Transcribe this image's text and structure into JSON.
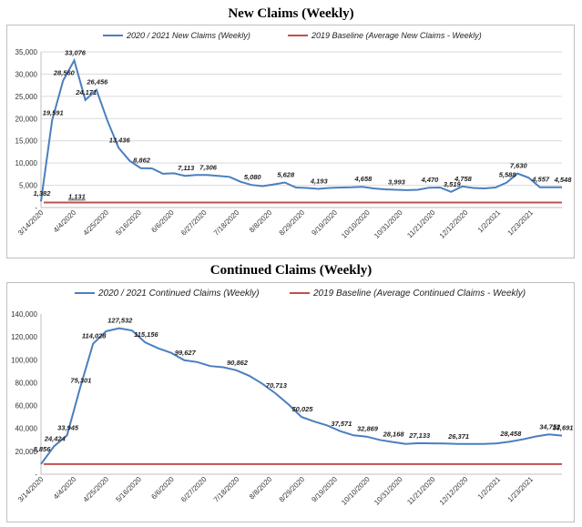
{
  "colors": {
    "series": "#4a7fbf",
    "baseline": "#c0504d"
  },
  "chart_data": [
    {
      "type": "line",
      "title": "New Claims (Weekly)",
      "legend_position": "top",
      "grid": true,
      "ylim": [
        0,
        35000
      ],
      "y_ticks": [
        0,
        5000,
        10000,
        15000,
        20000,
        25000,
        30000,
        35000
      ],
      "y_tick_labels": [
        "-",
        "5,000",
        "10,000",
        "15,000",
        "20,000",
        "25,000",
        "30,000",
        "35,000"
      ],
      "x_tick_labels": [
        "3/14/2020",
        "4/4/2020",
        "4/25/2020",
        "5/16/2020",
        "6/6/2020",
        "6/27/2020",
        "7/18/2020",
        "8/8/2020",
        "8/29/2020",
        "9/19/2020",
        "10/10/2020",
        "10/31/2020",
        "11/21/2020",
        "12/12/2020",
        "1/2/2021",
        "1/23/2021"
      ],
      "series": [
        {
          "name": "2020 / 2021 New Claims (Weekly)",
          "values": [
            1382,
            19591,
            28560,
            33076,
            24171,
            26456,
            19500,
            13436,
            10500,
            8862,
            8800,
            7600,
            7700,
            7113,
            7300,
            7306,
            7100,
            6900,
            5800,
            5080,
            4800,
            5200,
            5628,
            4500,
            4400,
            4193,
            4400,
            4500,
            4550,
            4658,
            4300,
            4100,
            3993,
            3900,
            4000,
            4470,
            4500,
            3519,
            4758,
            4400,
            4300,
            4500,
            5588,
            7630,
            6700,
            4557,
            4550,
            4548
          ],
          "labels": [
            {
              "i": 0,
              "text": "1,382"
            },
            {
              "i": 1,
              "text": "19,591"
            },
            {
              "i": 2,
              "text": "28,560"
            },
            {
              "i": 3,
              "text": "33,076"
            },
            {
              "i": 4,
              "text": "24,171"
            },
            {
              "i": 5,
              "text": "26,456"
            },
            {
              "i": 7,
              "text": "13,436"
            },
            {
              "i": 9,
              "text": "8,862"
            },
            {
              "i": 13,
              "text": "7,113"
            },
            {
              "i": 15,
              "text": "7,306"
            },
            {
              "i": 19,
              "text": "5,080"
            },
            {
              "i": 22,
              "text": "5,628"
            },
            {
              "i": 25,
              "text": "4,193"
            },
            {
              "i": 29,
              "text": "4,658"
            },
            {
              "i": 32,
              "text": "3,993"
            },
            {
              "i": 35,
              "text": "4,470"
            },
            {
              "i": 37,
              "text": "3,519"
            },
            {
              "i": 38,
              "text": "4,758"
            },
            {
              "i": 42,
              "text": "5,588"
            },
            {
              "i": 43,
              "text": "7,630"
            },
            {
              "i": 45,
              "text": "4,557"
            },
            {
              "i": 47,
              "text": "4,548"
            }
          ]
        },
        {
          "name": "2019 Baseline (Average New Claims - Weekly)",
          "constant": 1131,
          "label": "1,131"
        }
      ]
    },
    {
      "type": "line",
      "title": "Continued Claims (Weekly)",
      "legend_position": "top",
      "grid": false,
      "ylim": [
        0,
        140000
      ],
      "y_ticks": [
        0,
        20000,
        40000,
        60000,
        80000,
        100000,
        120000,
        140000
      ],
      "y_tick_labels": [
        "-",
        "20,000",
        "40,000",
        "60,000",
        "80,000",
        "100,000",
        "120,000",
        "140,000"
      ],
      "x_tick_labels": [
        "3/14/2020",
        "4/4/2020",
        "4/25/2020",
        "5/16/2020",
        "6/6/2020",
        "6/27/2020",
        "7/18/2020",
        "8/8/2020",
        "8/29/2020",
        "9/19/2020",
        "10/10/2020",
        "10/31/2020",
        "11/21/2020",
        "12/12/2020",
        "1/2/2021",
        "1/23/2021"
      ],
      "series": [
        {
          "name": "2020 / 2021 Continued Claims (Weekly)",
          "values": [
            8856,
            24424,
            33945,
            75301,
            114028,
            125000,
            127532,
            125500,
            115156,
            110000,
            106000,
            99627,
            98000,
            94500,
            93500,
            90862,
            86000,
            79000,
            70713,
            61000,
            50025,
            46000,
            42500,
            37571,
            34000,
            32869,
            30000,
            28168,
            26500,
            27133,
            27000,
            26800,
            26371,
            26371,
            26371,
            27000,
            28458,
            30500,
            33000,
            34752,
            33691
          ],
          "labels": [
            {
              "i": 0,
              "text": "8,856",
              "dy": -14
            },
            {
              "i": 1,
              "text": "24,424"
            },
            {
              "i": 2,
              "text": "33,945"
            },
            {
              "i": 3,
              "text": "75,301"
            },
            {
              "i": 4,
              "text": "114,028"
            },
            {
              "i": 6,
              "text": "127,532"
            },
            {
              "i": 8,
              "text": "115,156"
            },
            {
              "i": 11,
              "text": "99,627"
            },
            {
              "i": 15,
              "text": "90,862"
            },
            {
              "i": 18,
              "text": "70,713"
            },
            {
              "i": 20,
              "text": "50,025"
            },
            {
              "i": 23,
              "text": "37,571"
            },
            {
              "i": 25,
              "text": "32,869"
            },
            {
              "i": 27,
              "text": "28,168"
            },
            {
              "i": 29,
              "text": "27,133"
            },
            {
              "i": 32,
              "text": "26,371"
            },
            {
              "i": 36,
              "text": "28,458"
            },
            {
              "i": 39,
              "text": "34,752"
            },
            {
              "i": 40,
              "text": "33,691"
            }
          ]
        },
        {
          "name": "2019 Baseline (Average Continued Claims - Weekly)",
          "constant": 8856
        }
      ]
    }
  ]
}
